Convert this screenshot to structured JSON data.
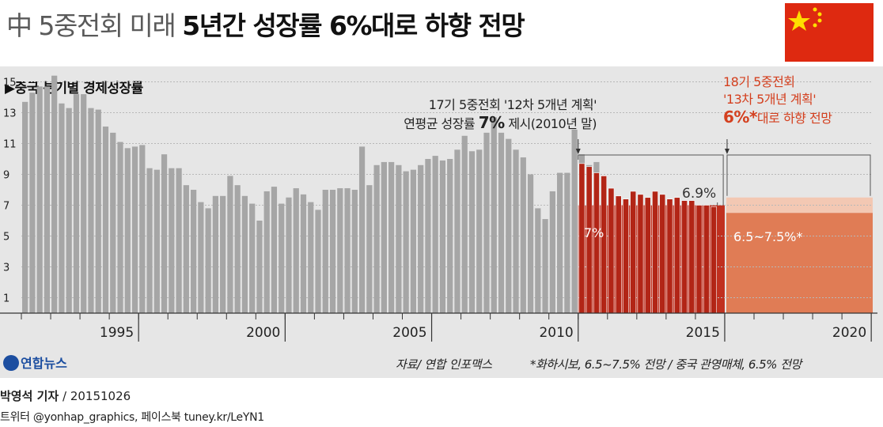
{
  "title": {
    "light": "中 5중전회 미래",
    "bold": "5년간 성장률 6%대로 하향 전망"
  },
  "flag": {
    "name": "China flag",
    "color_red": "#de2910",
    "color_star": "#ffde00"
  },
  "subtitle": "▶중국 분기별 경제성장률",
  "annotation_12th": {
    "line1": "17기 5중전회 '12차 5개년 계획'",
    "line2_pre": "연평균 성장률",
    "line2_big": "7%",
    "line2_post": "제시(2010년 말)"
  },
  "annotation_13th": {
    "line1": "18기 5중전회",
    "line2": "'13차 5개년 계획'",
    "line3_big": "6%*",
    "line3_post": "대로 하향 전망"
  },
  "labels": {
    "plan12_label": "7%",
    "last_value_label": "6.9%",
    "forecast_label": "6.5~7.5%*"
  },
  "footer": {
    "logo": "연합뉴스",
    "source": "자료/ 연합 인포맥스",
    "note": "*화하시보, 6.5~7.5% 전망 / 중국 관영매체, 6.5% 전망",
    "credit_name": "박영석 기자",
    "credit_date": "/ 20151026",
    "twitter": "트위터 @yonhap_graphics, 페이스북 tuney.kr/LeYN1"
  },
  "colors": {
    "bar_history": "#a6a6a6",
    "bar_recent": "#b22516",
    "plan_fill": "#c0301f",
    "forecast_fill": "#e07c55",
    "forecast_band": "#f3c8b3",
    "annotation_red": "#d4401f"
  },
  "chart_data": {
    "type": "bar",
    "title": "중국 분기별 경제성장률",
    "x_tick_labels": [
      "1995",
      "2000",
      "2005",
      "2010",
      "2015",
      "2020"
    ],
    "y_tick_labels": [
      "1",
      "3",
      "5",
      "7",
      "9",
      "11",
      "13",
      "15"
    ],
    "ylim": [
      0,
      16
    ],
    "x_range": [
      1991.75,
      2020.8
    ],
    "grid": true,
    "series": [
      {
        "start_year": 1992,
        "values": [
          13.7,
          14.3,
          14.7,
          14.7,
          15.4,
          13.6,
          13.3,
          14.2,
          14.2,
          13.3,
          13.2,
          12.1,
          11.7,
          11.1,
          10.7,
          10.8,
          10.9,
          9.4,
          9.3,
          10.3,
          9.4,
          9.4,
          8.3,
          8.0,
          7.2,
          6.8,
          7.6,
          7.6,
          8.9,
          8.3,
          7.6,
          7.1,
          6.0,
          7.9,
          8.2,
          7.1,
          7.5,
          8.1,
          7.7,
          7.2,
          6.7,
          8.0,
          8.0,
          8.1,
          8.1,
          8.0,
          10.8,
          8.3,
          9.6,
          9.8,
          9.8,
          9.6,
          9.2,
          9.3,
          9.6,
          10.0,
          10.2,
          9.9,
          10.0,
          10.6,
          11.5,
          10.5,
          10.6,
          11.7,
          12.7,
          11.7,
          11.3,
          10.6,
          10.1,
          9.0,
          6.8,
          6.1,
          7.9,
          9.1,
          9.1,
          11.9,
          10.3,
          9.6,
          9.8
        ]
      },
      {
        "start_year": 2011,
        "values": [
          9.7,
          9.5,
          9.1,
          8.9,
          8.1,
          7.6,
          7.4,
          7.9,
          7.7,
          7.5,
          7.9,
          7.7,
          7.4,
          7.5,
          7.3,
          7.3,
          7.0,
          7.0,
          6.9
        ]
      }
    ],
    "plan_12th_average": 7.0,
    "plan_12th_years": [
      2011,
      2015
    ],
    "forecast_13th": {
      "years": [
        2016,
        2020
      ],
      "range": [
        6.5,
        7.5
      ],
      "level": 6.5
    }
  }
}
